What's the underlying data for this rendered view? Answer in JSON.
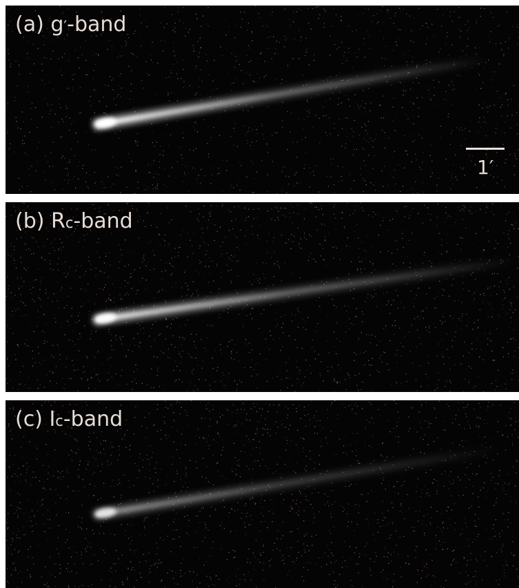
{
  "panels": [
    {
      "id": "a",
      "label_prefix": "(a) g",
      "label_sub": "′",
      "label_suffix": "-band",
      "tail_brightness": 1.0
    },
    {
      "id": "b",
      "label_prefix": "(b) R",
      "label_sub": "c",
      "label_suffix": "-band",
      "tail_brightness": 0.9
    },
    {
      "id": "c",
      "label_prefix": "(c) I",
      "label_sub": "c",
      "label_suffix": "-band",
      "tail_brightness": 0.5
    }
  ],
  "scale_bar": {
    "label": "1′"
  },
  "colors": {
    "background": "#050404",
    "noise": "#d8a898",
    "comet": "#ffffff",
    "label": "#e6dcd6"
  }
}
